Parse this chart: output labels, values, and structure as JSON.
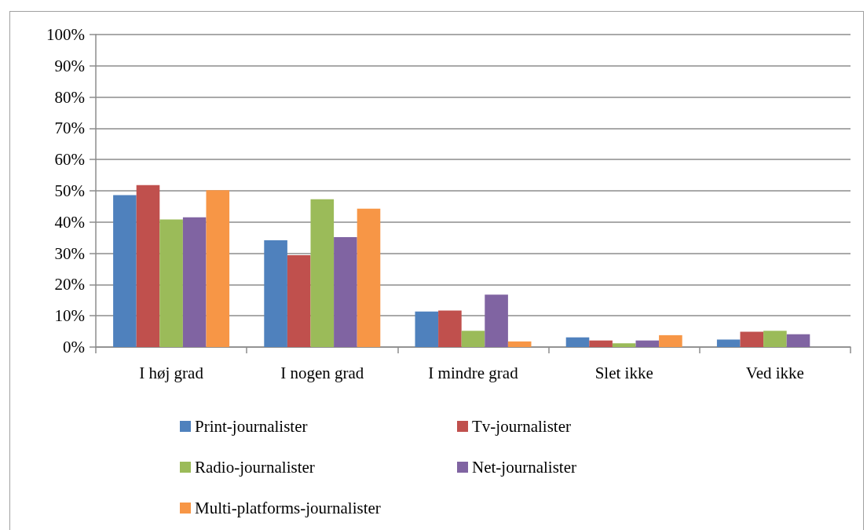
{
  "chart_data": {
    "type": "bar",
    "categories": [
      "I høj grad",
      "I nogen grad",
      "I mindre grad",
      "Slet ikke",
      "Ved ikke"
    ],
    "series": [
      {
        "name": "Print-journalister",
        "color": "#4f81bd",
        "values": [
          48.6,
          34.2,
          11.4,
          3.1,
          2.4
        ]
      },
      {
        "name": "Tv-journalister",
        "color": "#c0504d",
        "values": [
          51.8,
          29.4,
          11.7,
          2.1,
          4.9
        ]
      },
      {
        "name": "Radio-journalister",
        "color": "#9bbb59",
        "values": [
          40.8,
          47.3,
          5.2,
          1.2,
          5.2
        ]
      },
      {
        "name": "Net-journalister",
        "color": "#8064a2",
        "values": [
          41.5,
          35.2,
          16.8,
          2.1,
          4.1
        ]
      },
      {
        "name": "Multi-platforms-journalister",
        "color": "#f79646",
        "values": [
          50.2,
          44.3,
          1.8,
          3.8,
          null
        ]
      }
    ],
    "ylim": [
      0,
      100
    ],
    "yticks": [
      {
        "value": 0,
        "label": "0%"
      },
      {
        "value": 10,
        "label": "10%"
      },
      {
        "value": 20,
        "label": "20%"
      },
      {
        "value": 30,
        "label": "30%"
      },
      {
        "value": 40,
        "label": "40%"
      },
      {
        "value": 50,
        "label": "50%"
      },
      {
        "value": 60,
        "label": "60%"
      },
      {
        "value": 70,
        "label": "70%"
      },
      {
        "value": 80,
        "label": "80%"
      },
      {
        "value": 90,
        "label": "90%"
      },
      {
        "value": 100,
        "label": "100%"
      }
    ],
    "grid": "y",
    "legend": "bottom"
  }
}
